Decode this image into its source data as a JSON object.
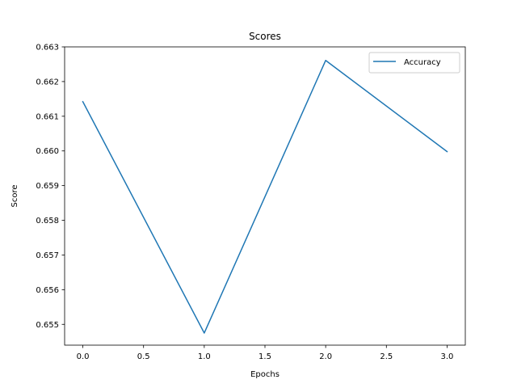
{
  "chart_data": {
    "type": "line",
    "title": "Scores",
    "xlabel": "Epochs",
    "ylabel": "Score",
    "xlim": [
      -0.15,
      3.15
    ],
    "ylim": [
      0.6544,
      0.663
    ],
    "xticks": [
      0.0,
      0.5,
      1.0,
      1.5,
      2.0,
      2.5,
      3.0
    ],
    "xtick_labels": [
      "0.0",
      "0.5",
      "1.0",
      "1.5",
      "2.0",
      "2.5",
      "3.0"
    ],
    "yticks": [
      0.655,
      0.656,
      0.657,
      0.658,
      0.659,
      0.66,
      0.661,
      0.662,
      0.663
    ],
    "ytick_labels": [
      "0.655",
      "0.656",
      "0.657",
      "0.658",
      "0.659",
      "0.660",
      "0.661",
      "0.662",
      "0.663"
    ],
    "grid": false,
    "legend_position": "top-right",
    "series": [
      {
        "name": "Accuracy",
        "color": "#1f77b4",
        "x": [
          0,
          1,
          2,
          3
        ],
        "y": [
          0.66142,
          0.65475,
          0.66261,
          0.65998
        ]
      }
    ]
  }
}
